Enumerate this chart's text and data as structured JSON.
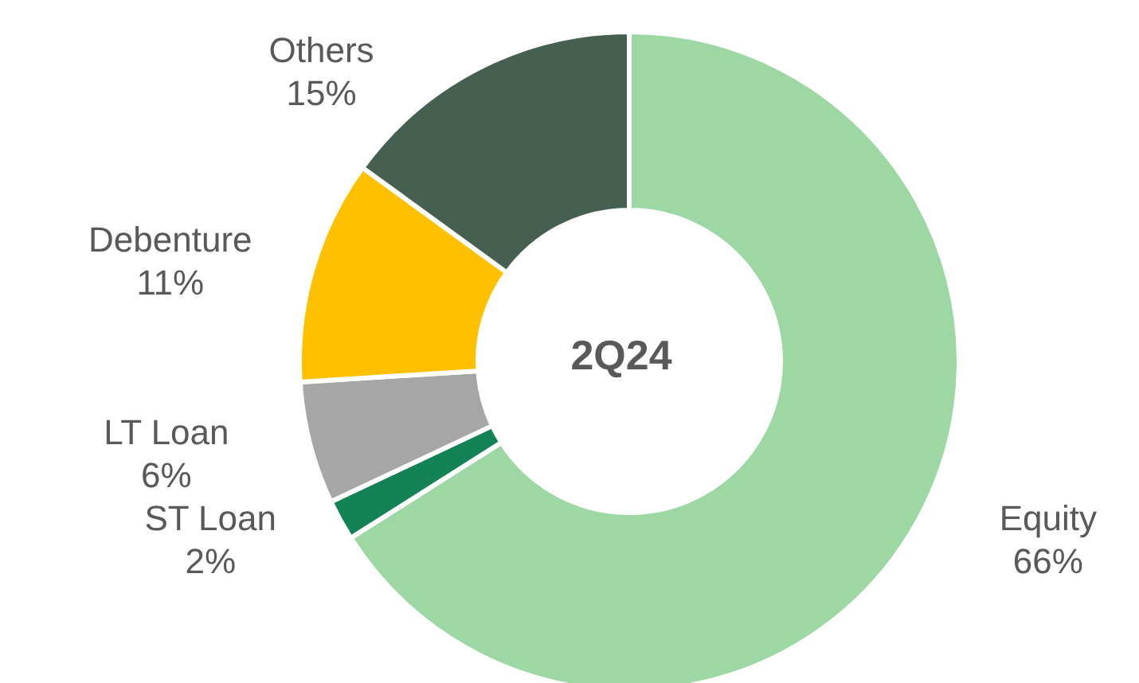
{
  "chart_data": {
    "type": "donut",
    "title": "2Q24",
    "categories": [
      "Equity",
      "ST Loan",
      "LT Loan",
      "Debenture",
      "Others"
    ],
    "values": [
      66,
      2,
      6,
      11,
      15
    ],
    "value_labels": [
      "66%",
      "2%",
      "6%",
      "11%",
      "15%"
    ],
    "colors": [
      "#9dd7a3",
      "#138356",
      "#a6a6a6",
      "#ffc000",
      "#455f50"
    ]
  }
}
